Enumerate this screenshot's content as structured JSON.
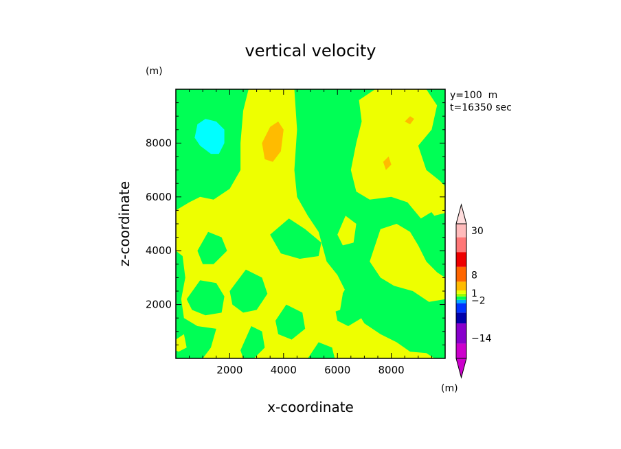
{
  "chart_data": {
    "type": "heatmap",
    "title": "vertical velocity",
    "xlabel": "x-coordinate",
    "ylabel": "z-coordinate",
    "x_unit": "(m)",
    "y_unit": "(m)",
    "info": [
      "y=100  m",
      "t=16350 sec"
    ],
    "xlim": [
      0,
      10000
    ],
    "ylim": [
      0,
      10000
    ],
    "xticks": [
      {
        "value": 2000,
        "label": "2000"
      },
      {
        "value": 4000,
        "label": "4000"
      },
      {
        "value": 6000,
        "label": "6000"
      },
      {
        "value": 8000,
        "label": "8000"
      }
    ],
    "yticks": [
      {
        "value": 2000,
        "label": "2000"
      },
      {
        "value": 4000,
        "label": "4000"
      },
      {
        "value": 6000,
        "label": "6000"
      },
      {
        "value": 8000,
        "label": "8000"
      }
    ],
    "background_level_color": "#00ff55",
    "regions": [
      {
        "level": "positive",
        "color": "#eeff00",
        "points": [
          [
            2700,
            10000
          ],
          [
            4400,
            10000
          ],
          [
            4500,
            8500
          ],
          [
            4400,
            7000
          ],
          [
            4500,
            6000
          ],
          [
            4900,
            5300
          ],
          [
            5300,
            4700
          ],
          [
            5600,
            3600
          ],
          [
            6000,
            3100
          ],
          [
            6300,
            2500
          ],
          [
            6700,
            1800
          ],
          [
            7000,
            1300
          ],
          [
            7600,
            900
          ],
          [
            8200,
            600
          ],
          [
            8700,
            250
          ],
          [
            9300,
            200
          ],
          [
            9600,
            0
          ],
          [
            1000,
            0
          ],
          [
            1300,
            400
          ],
          [
            1500,
            1100
          ],
          [
            800,
            1200
          ],
          [
            300,
            1500
          ],
          [
            200,
            2200
          ],
          [
            350,
            3000
          ],
          [
            250,
            3800
          ],
          [
            0,
            4000
          ],
          [
            0,
            5500
          ],
          [
            500,
            5800
          ],
          [
            900,
            6000
          ],
          [
            1400,
            5900
          ],
          [
            2000,
            6300
          ],
          [
            2400,
            7000
          ],
          [
            2400,
            8000
          ],
          [
            2500,
            9200
          ]
        ]
      },
      {
        "level": "positive",
        "color": "#eeff00",
        "points": [
          [
            6800,
            9600
          ],
          [
            7400,
            10000
          ],
          [
            9300,
            10000
          ],
          [
            9700,
            9400
          ],
          [
            9500,
            8500
          ],
          [
            9000,
            7900
          ],
          [
            9300,
            7000
          ],
          [
            9800,
            6600
          ],
          [
            9600,
            5500
          ],
          [
            9100,
            5200
          ],
          [
            8600,
            5800
          ],
          [
            8000,
            6000
          ],
          [
            7200,
            5900
          ],
          [
            6700,
            6200
          ],
          [
            6500,
            7000
          ],
          [
            6700,
            8000
          ],
          [
            6900,
            8800
          ]
        ]
      },
      {
        "level": "positive",
        "color": "#eeff00",
        "points": [
          [
            7200,
            3600
          ],
          [
            7600,
            4800
          ],
          [
            8200,
            5000
          ],
          [
            8700,
            4700
          ],
          [
            9000,
            4200
          ],
          [
            9300,
            3600
          ],
          [
            9700,
            3200
          ],
          [
            10000,
            3000
          ],
          [
            10000,
            2200
          ],
          [
            9400,
            2100
          ],
          [
            8800,
            2500
          ],
          [
            8100,
            2700
          ],
          [
            7600,
            3000
          ]
        ]
      },
      {
        "level": "positive",
        "color": "#eeff00",
        "points": [
          [
            9200,
            5800
          ],
          [
            9800,
            6600
          ],
          [
            10000,
            6400
          ],
          [
            10000,
            5400
          ],
          [
            9600,
            5300
          ]
        ]
      },
      {
        "level": "near-zero",
        "color": "#00ff55",
        "points": [
          [
            3500,
            4600
          ],
          [
            4200,
            5200
          ],
          [
            4800,
            4800
          ],
          [
            5400,
            4300
          ],
          [
            5300,
            3800
          ],
          [
            4600,
            3700
          ],
          [
            3900,
            3900
          ]
        ]
      },
      {
        "level": "near-zero",
        "color": "#00ff55",
        "points": [
          [
            2000,
            2500
          ],
          [
            2600,
            3300
          ],
          [
            3200,
            3000
          ],
          [
            3400,
            2400
          ],
          [
            3000,
            1800
          ],
          [
            2500,
            1700
          ],
          [
            2100,
            2000
          ]
        ]
      },
      {
        "level": "near-zero",
        "color": "#00ff55",
        "points": [
          [
            400,
            2200
          ],
          [
            900,
            2900
          ],
          [
            1500,
            2800
          ],
          [
            1800,
            2300
          ],
          [
            1700,
            1700
          ],
          [
            1100,
            1600
          ],
          [
            600,
            1800
          ]
        ]
      },
      {
        "level": "near-zero",
        "color": "#00ff55",
        "points": [
          [
            800,
            4000
          ],
          [
            1200,
            4700
          ],
          [
            1700,
            4500
          ],
          [
            1900,
            4000
          ],
          [
            1400,
            3500
          ],
          [
            1000,
            3500
          ]
        ]
      },
      {
        "level": "near-zero",
        "color": "#00ff55",
        "points": [
          [
            3700,
            1400
          ],
          [
            4100,
            2000
          ],
          [
            4700,
            1700
          ],
          [
            4800,
            1100
          ],
          [
            4300,
            700
          ],
          [
            3800,
            900
          ]
        ]
      },
      {
        "level": "near-zero",
        "color": "#00ff55",
        "points": [
          [
            5900,
            1900
          ],
          [
            6300,
            2600
          ],
          [
            6800,
            2200
          ],
          [
            6900,
            1500
          ],
          [
            6400,
            1200
          ],
          [
            6000,
            1400
          ]
        ]
      },
      {
        "level": "near-zero",
        "color": "#00ff55",
        "points": [
          [
            2400,
            300
          ],
          [
            2800,
            1200
          ],
          [
            3200,
            1000
          ],
          [
            3300,
            400
          ],
          [
            2900,
            0
          ],
          [
            2500,
            0
          ]
        ]
      },
      {
        "level": "near-zero",
        "color": "#00ff55",
        "points": [
          [
            4900,
            0
          ],
          [
            5300,
            600
          ],
          [
            5800,
            400
          ],
          [
            5900,
            0
          ]
        ]
      },
      {
        "level": "positive",
        "color": "#eeff00",
        "points": [
          [
            6000,
            4600
          ],
          [
            6300,
            5300
          ],
          [
            6700,
            5000
          ],
          [
            6600,
            4300
          ],
          [
            6200,
            4200
          ]
        ]
      },
      {
        "level": "positive",
        "color": "#eeff00",
        "points": [
          [
            5600,
            2100
          ],
          [
            5900,
            2700
          ],
          [
            6200,
            2400
          ],
          [
            6100,
            1800
          ],
          [
            5800,
            1700
          ]
        ]
      },
      {
        "level": "positive",
        "color": "#eeff00",
        "points": [
          [
            0,
            700
          ],
          [
            300,
            900
          ],
          [
            400,
            400
          ],
          [
            100,
            250
          ],
          [
            0,
            300
          ]
        ]
      },
      {
        "level": "moderate-positive",
        "color": "#ffbb00",
        "points": [
          [
            3200,
            8000
          ],
          [
            3500,
            8600
          ],
          [
            3800,
            8800
          ],
          [
            4000,
            8500
          ],
          [
            3900,
            7700
          ],
          [
            3600,
            7300
          ],
          [
            3300,
            7400
          ]
        ]
      },
      {
        "level": "moderate-positive",
        "color": "#ffbb00",
        "points": [
          [
            7700,
            7300
          ],
          [
            7900,
            7500
          ],
          [
            8000,
            7200
          ],
          [
            7800,
            7000
          ]
        ]
      },
      {
        "level": "moderate-positive",
        "color": "#ffbb00",
        "points": [
          [
            8500,
            8800
          ],
          [
            8700,
            9000
          ],
          [
            8850,
            8900
          ],
          [
            8700,
            8700
          ]
        ]
      },
      {
        "level": "negative",
        "color": "#00ffff",
        "points": [
          [
            700,
            8200
          ],
          [
            800,
            8700
          ],
          [
            1100,
            8900
          ],
          [
            1500,
            8800
          ],
          [
            1800,
            8500
          ],
          [
            1800,
            8000
          ],
          [
            1600,
            7600
          ],
          [
            1300,
            7600
          ],
          [
            900,
            7900
          ]
        ]
      }
    ],
    "colorbar": {
      "unit": "(m)",
      "labels": [
        {
          "value": "30",
          "pos": 0.95
        },
        {
          "value": "8",
          "pos": 0.62
        },
        {
          "value": "1",
          "pos": 0.485
        },
        {
          "value": "−2",
          "pos": 0.43
        },
        {
          "value": "−14",
          "pos": 0.15
        }
      ],
      "segments": [
        {
          "color": "#cc00cc",
          "from": 0.0,
          "to": 0.11
        },
        {
          "color": "#8800cc",
          "from": 0.11,
          "to": 0.26
        },
        {
          "color": "#0000aa",
          "from": 0.26,
          "to": 0.34
        },
        {
          "color": "#0033ff",
          "from": 0.34,
          "to": 0.41
        },
        {
          "color": "#00aaff",
          "from": 0.41,
          "to": 0.435
        },
        {
          "color": "#00ff55",
          "from": 0.435,
          "to": 0.46
        },
        {
          "color": "#99ff00",
          "from": 0.46,
          "to": 0.48
        },
        {
          "color": "#eeff00",
          "from": 0.48,
          "to": 0.505
        },
        {
          "color": "#ffbb00",
          "from": 0.505,
          "to": 0.57
        },
        {
          "color": "#ff6600",
          "from": 0.57,
          "to": 0.68
        },
        {
          "color": "#ee0000",
          "from": 0.68,
          "to": 0.79
        },
        {
          "color": "#ff7777",
          "from": 0.79,
          "to": 0.9
        },
        {
          "color": "#ffbbbb",
          "from": 0.9,
          "to": 1.0
        }
      ],
      "top_arrow_color": "#ffdddd",
      "bottom_arrow_color": "#cc00cc"
    }
  }
}
